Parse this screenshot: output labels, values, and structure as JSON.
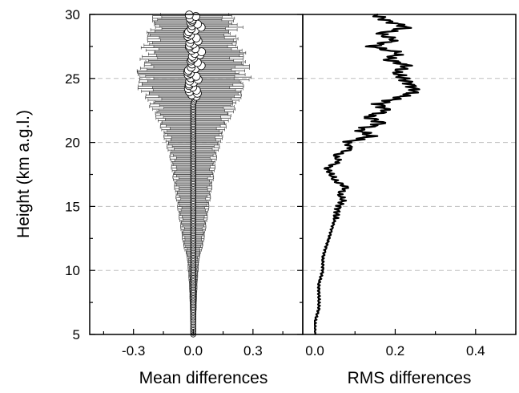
{
  "chart_data": [
    {
      "type": "scatter",
      "xlabel": "Mean differences",
      "ylabel": "Height (km a.g.l.)",
      "xlim": [
        -0.52,
        0.55
      ],
      "ylim": [
        5,
        30
      ],
      "xticks": [
        -0.3,
        0.0,
        0.3
      ],
      "xtick_labels": [
        "-0.3",
        "0.0",
        "0.3"
      ],
      "yticks": [
        5,
        10,
        15,
        20,
        25,
        30
      ],
      "ytick_labels": [
        "5",
        "10",
        "15",
        "20",
        "25",
        "30"
      ],
      "grid": "dashed horizontal at y ticks",
      "marker": "white circle with black edge",
      "errorbar_color": "#555555",
      "series": [
        {
          "height": [
            5,
            7,
            9,
            11,
            12,
            13,
            14,
            15,
            16,
            17,
            18,
            19,
            20,
            21,
            22,
            23,
            23.5,
            24,
            24.5,
            25,
            25.5,
            26,
            26.5,
            27,
            27.5,
            28,
            28.5,
            29,
            29.5,
            30
          ],
          "mean": [
            0.0,
            0.0,
            0.0,
            0.0,
            0.0,
            0.0,
            0.0,
            0.0,
            0.0,
            0.0,
            0.0,
            0.0,
            0.0,
            0.0,
            0.0,
            0.0,
            0.01,
            0.0,
            -0.02,
            0.01,
            -0.03,
            0.02,
            -0.01,
            0.03,
            -0.02,
            0.01,
            -0.03,
            0.02,
            -0.01,
            0.0
          ],
          "error": [
            0.01,
            0.015,
            0.02,
            0.03,
            0.05,
            0.06,
            0.07,
            0.08,
            0.09,
            0.1,
            0.11,
            0.12,
            0.14,
            0.16,
            0.19,
            0.22,
            0.24,
            0.26,
            0.27,
            0.28,
            0.28,
            0.27,
            0.26,
            0.25,
            0.24,
            0.23,
            0.22,
            0.22,
            0.21,
            0.2
          ]
        }
      ]
    },
    {
      "type": "line",
      "xlabel": "RMS differences",
      "xlim": [
        -0.03,
        0.5
      ],
      "ylim": [
        5,
        30
      ],
      "xticks": [
        0.0,
        0.2,
        0.4
      ],
      "xtick_labels": [
        "0.0",
        "0.2",
        "0.4"
      ],
      "grid": "dashed horizontal at y ticks",
      "line_color": "#000000",
      "series": [
        {
          "height": [
            5,
            6,
            7,
            8,
            9,
            10,
            11,
            12,
            13,
            14,
            15,
            15.5,
            16,
            16.5,
            17,
            17.5,
            18,
            18.5,
            19,
            19.5,
            20,
            20.5,
            21,
            21.5,
            22,
            22.5,
            23,
            23.5,
            24,
            24.5,
            25,
            25.5,
            26,
            26.5,
            27,
            27.5,
            28,
            28.5,
            29,
            29.5,
            30
          ],
          "rms": [
            0.0,
            0.0,
            0.01,
            0.01,
            0.01,
            0.02,
            0.02,
            0.03,
            0.04,
            0.05,
            0.06,
            0.07,
            0.06,
            0.08,
            0.05,
            0.04,
            0.03,
            0.06,
            0.05,
            0.09,
            0.08,
            0.14,
            0.11,
            0.17,
            0.13,
            0.18,
            0.16,
            0.21,
            0.25,
            0.24,
            0.22,
            0.2,
            0.23,
            0.18,
            0.21,
            0.14,
            0.2,
            0.16,
            0.23,
            0.18,
            0.15
          ]
        }
      ]
    }
  ]
}
